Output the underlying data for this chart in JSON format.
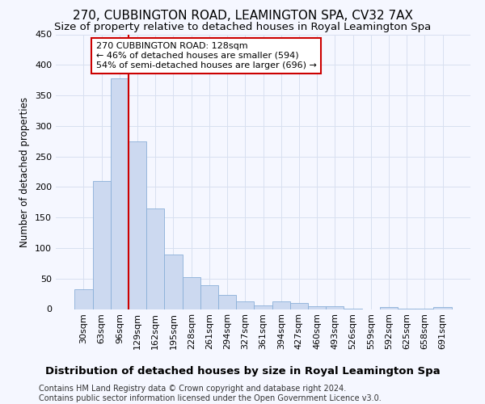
{
  "title": "270, CUBBINGTON ROAD, LEAMINGTON SPA, CV32 7AX",
  "subtitle": "Size of property relative to detached houses in Royal Leamington Spa",
  "xlabel": "Distribution of detached houses by size in Royal Leamington Spa",
  "ylabel": "Number of detached properties",
  "footnote1": "Contains HM Land Registry data © Crown copyright and database right 2024.",
  "footnote2": "Contains public sector information licensed under the Open Government Licence v3.0.",
  "bin_labels": [
    "30sqm",
    "63sqm",
    "96sqm",
    "129sqm",
    "162sqm",
    "195sqm",
    "228sqm",
    "261sqm",
    "294sqm",
    "327sqm",
    "361sqm",
    "394sqm",
    "427sqm",
    "460sqm",
    "493sqm",
    "526sqm",
    "559sqm",
    "592sqm",
    "625sqm",
    "658sqm",
    "691sqm"
  ],
  "bar_heights": [
    33,
    210,
    378,
    275,
    165,
    90,
    52,
    39,
    23,
    13,
    6,
    12,
    10,
    4,
    5,
    1,
    0,
    3,
    1,
    1,
    3
  ],
  "bar_color": "#ccd9f0",
  "bar_edge_color": "#8ab0d8",
  "vline_x": 2.5,
  "annotation_text": "270 CUBBINGTON ROAD: 128sqm\n← 46% of detached houses are smaller (594)\n54% of semi-detached houses are larger (696) →",
  "annotation_box_facecolor": "white",
  "annotation_box_edgecolor": "#cc0000",
  "vline_color": "#cc0000",
  "ylim": [
    0,
    450
  ],
  "yticks": [
    0,
    50,
    100,
    150,
    200,
    250,
    300,
    350,
    400,
    450
  ],
  "bg_color": "#f5f7ff",
  "grid_color": "#d8e0f0",
  "title_fontsize": 11,
  "subtitle_fontsize": 9.5,
  "xlabel_fontsize": 9.5,
  "ylabel_fontsize": 8.5,
  "tick_fontsize": 8,
  "footnote_fontsize": 7,
  "annot_fontsize": 8
}
